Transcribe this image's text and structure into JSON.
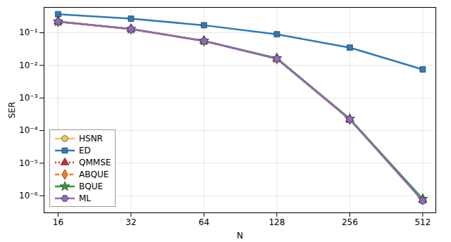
{
  "chart_data": {
    "type": "line",
    "x_label": "N",
    "y_label": "SER",
    "log": true,
    "grid": true,
    "legend": "lower left",
    "x": [
      16,
      32,
      64,
      128,
      256,
      512
    ],
    "xlim": [
      14,
      580
    ],
    "xticks": [
      16,
      32,
      64,
      128,
      256,
      512
    ],
    "ylim": [
      3e-07,
      0.6
    ],
    "yticks": [
      {
        "value": 0.1,
        "label": "10⁻¹"
      },
      {
        "value": 0.01,
        "label": "10⁻²"
      },
      {
        "value": 0.001,
        "label": "10⁻³"
      },
      {
        "value": 0.0001,
        "label": "10⁻⁴"
      },
      {
        "value": 1e-05,
        "label": "10⁻⁵"
      },
      {
        "value": 1e-06,
        "label": "10⁻⁶"
      }
    ],
    "series": [
      {
        "name": "HSNR",
        "color": "#e8c95a",
        "marker": "circle",
        "line_style": "solid",
        "values": [
          0.22,
          0.13,
          0.056,
          0.016,
          0.00022,
          7e-07
        ]
      },
      {
        "name": "ED",
        "color": "#2b7bb9",
        "marker": "square",
        "line_style": "solid",
        "values": [
          0.37,
          0.27,
          0.17,
          0.09,
          0.035,
          0.0075
        ]
      },
      {
        "name": "QMMSE",
        "color": "#d62728",
        "marker": "triangle",
        "line_style": "dotted",
        "values": [
          0.22,
          0.13,
          0.056,
          0.016,
          0.00022,
          7.5e-07
        ]
      },
      {
        "name": "ABQUE",
        "color": "#ff7f0e",
        "marker": "diamond",
        "line_style": "dashed",
        "values": [
          0.22,
          0.13,
          0.056,
          0.016,
          0.00022,
          7.8e-07
        ]
      },
      {
        "name": "BQUE",
        "color": "#2ca02c",
        "marker": "star",
        "line_style": "solid",
        "values": [
          0.22,
          0.13,
          0.057,
          0.0165,
          0.00023,
          8e-07
        ]
      },
      {
        "name": "ML",
        "color": "#9467bd",
        "marker": "hexagon",
        "line_style": "solid",
        "values": [
          0.22,
          0.13,
          0.056,
          0.016,
          0.00022,
          7e-07
        ]
      }
    ]
  }
}
